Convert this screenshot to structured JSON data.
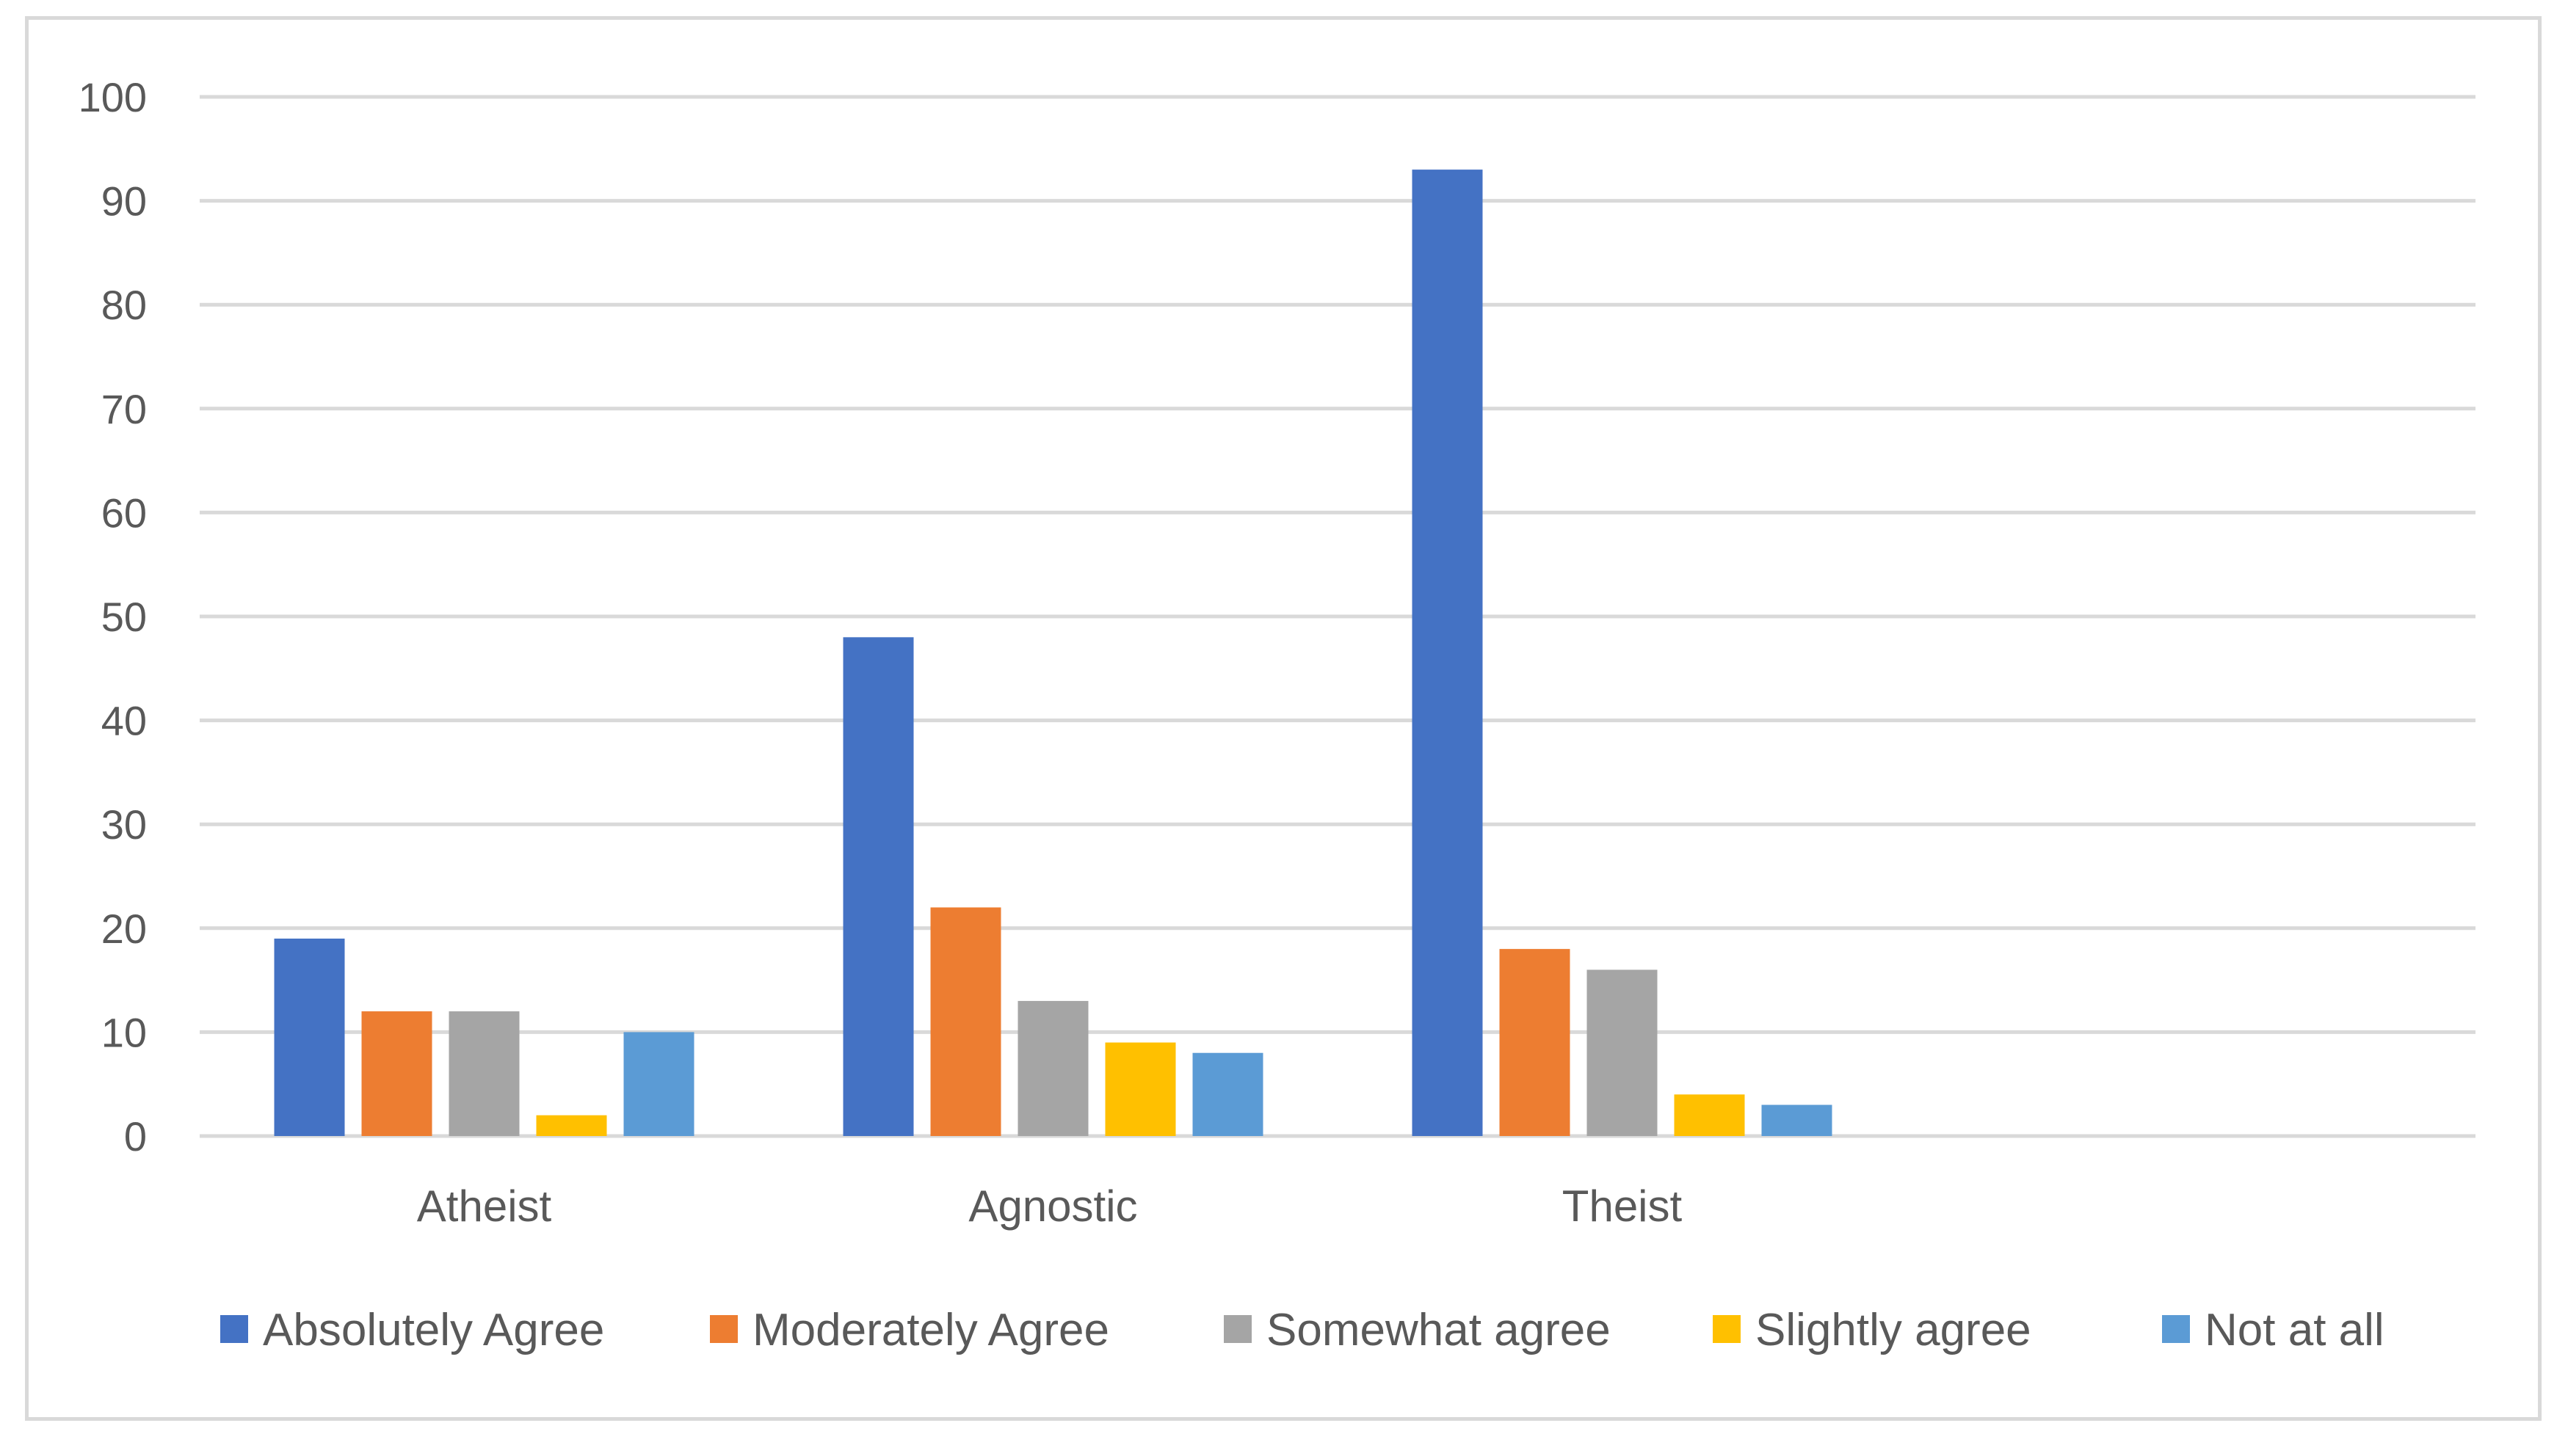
{
  "chart_data": {
    "type": "bar",
    "title": "",
    "xlabel": "",
    "ylabel": "",
    "ylim": [
      0,
      100
    ],
    "yticks": [
      0,
      10,
      20,
      30,
      40,
      50,
      60,
      70,
      80,
      90,
      100
    ],
    "grid": true,
    "legend_position": "bottom",
    "categories": [
      "Atheist",
      "Agnostic",
      "Theist",
      ""
    ],
    "series": [
      {
        "name": "Absolutely Agree",
        "color": "#4472C4",
        "values": [
          19,
          48,
          93,
          null
        ]
      },
      {
        "name": "Moderately Agree",
        "color": "#ED7D31",
        "values": [
          12,
          22,
          18,
          null
        ]
      },
      {
        "name": "Somewhat agree",
        "color": "#A5A5A5",
        "values": [
          12,
          13,
          16,
          null
        ]
      },
      {
        "name": "Slightly agree",
        "color": "#FFC000",
        "values": [
          2,
          9,
          4,
          null
        ]
      },
      {
        "name": "Not at all",
        "color": "#5B9BD5",
        "values": [
          10,
          8,
          3,
          null
        ]
      }
    ]
  }
}
